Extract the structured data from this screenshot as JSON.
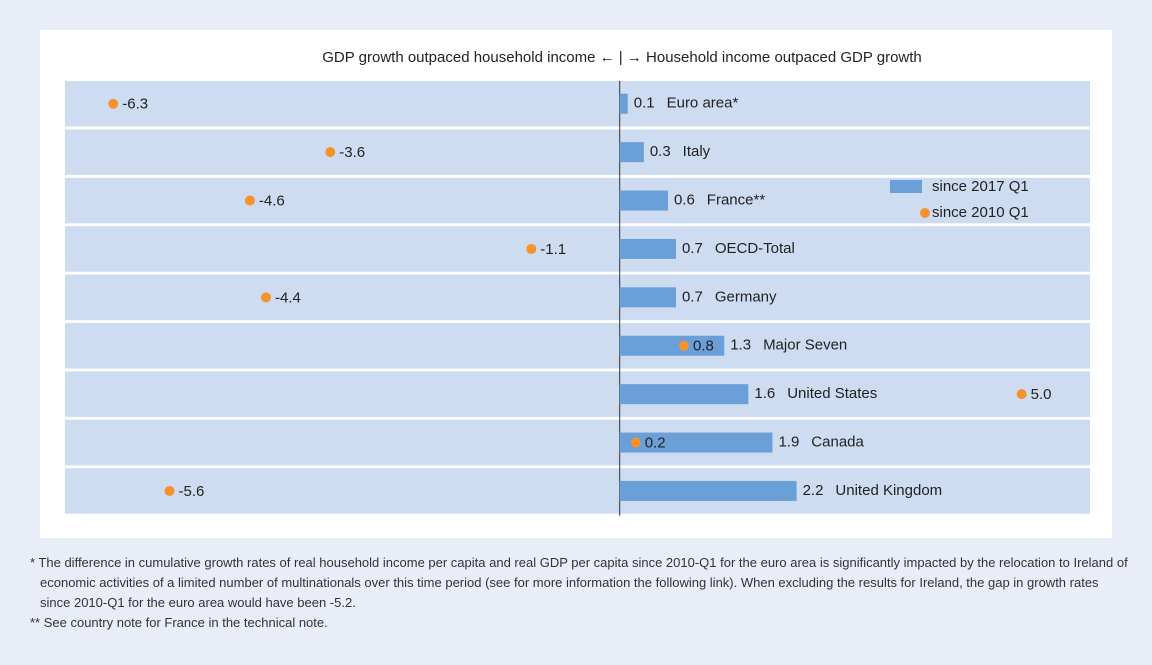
{
  "chart_data": {
    "type": "bar-dot",
    "subtitle": "GDP growth outpaced household income ← | → Household income outpaced GDP growth",
    "categories": [
      "Euro area*",
      "Italy",
      "France**",
      "OECD-Total",
      "Germany",
      "Major Seven",
      "United States",
      "Canada",
      "United Kingdom"
    ],
    "series": [
      {
        "name": "since 2017 Q1",
        "color": "#6a9fd8",
        "values": [
          0.1,
          0.3,
          0.6,
          0.7,
          0.7,
          1.3,
          1.6,
          1.9,
          2.2
        ]
      },
      {
        "name": "since 2010 Q1",
        "color": "#f5922b",
        "values": [
          -6.3,
          -3.6,
          -4.6,
          -1.1,
          -4.4,
          0.8,
          5.0,
          0.2,
          -5.6
        ],
        "value_labels": [
          "-6.3",
          "-3.6",
          "-4.6",
          "-1.1",
          "-4.4",
          "0.8",
          "5.0",
          "0.2",
          "-5.6"
        ]
      }
    ],
    "xlim": [
      -6.9,
      5.85
    ],
    "legend": "right",
    "notes": [
      "* The difference in cumulative growth rates of real household income per capita and real GDP per capita since 2010-Q1 for the euro area is significantly impacted by the relocation to Ireland of economic activities of a limited number of multinationals over this time period (see for more information the following link). When excluding the results for Ireland, the gap in growth rates since 2010-Q1 for the euro area would have been -5.2.",
      "** See country note for France in the technical note."
    ]
  }
}
